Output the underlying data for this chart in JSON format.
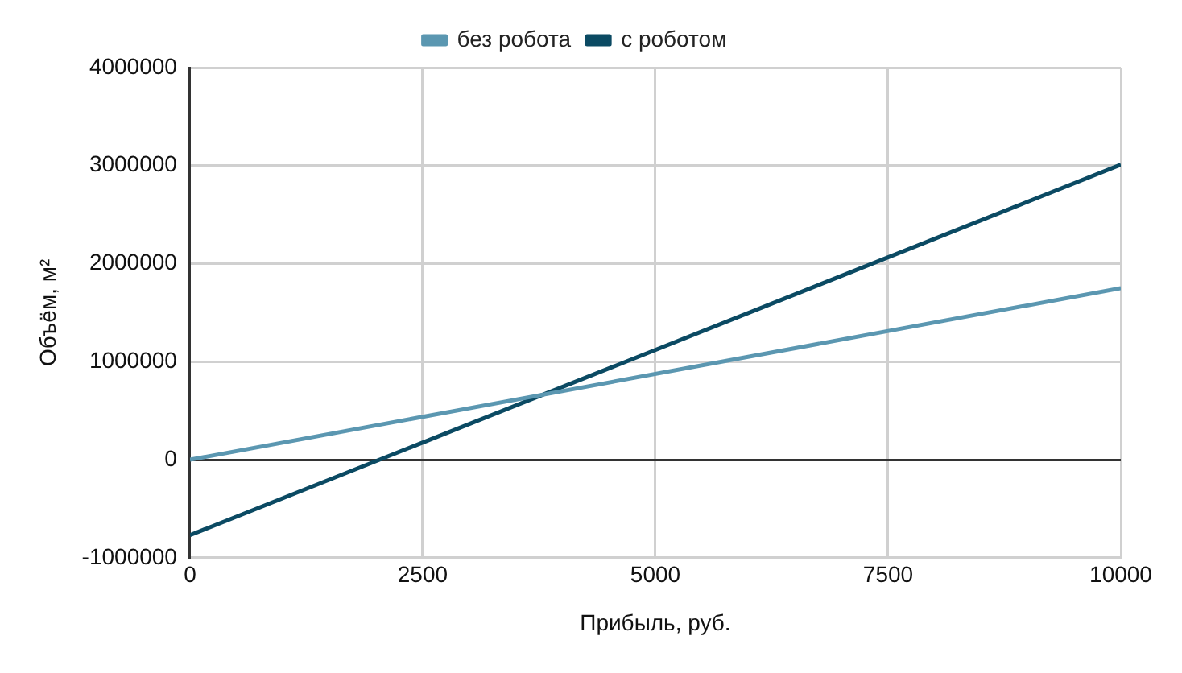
{
  "chart_data": {
    "type": "line",
    "xlabel": "Прибыль, руб.",
    "ylabel": "Объём, м²",
    "x": [
      0,
      10000
    ],
    "series": [
      {
        "name": "без робота",
        "color": "#5b97b1",
        "values": [
          0,
          1750000
        ]
      },
      {
        "name": "с роботом",
        "color": "#0b4a63",
        "values": [
          -770000,
          3010000
        ]
      }
    ],
    "xlim": [
      0,
      10000
    ],
    "xticks": [
      0,
      2500,
      5000,
      7500,
      10000
    ],
    "ylim": [
      -1000000,
      4000000
    ],
    "yticks": [
      -1000000,
      0,
      1000000,
      2000000,
      3000000,
      4000000
    ],
    "grid": true,
    "legend": "top",
    "marker": "none",
    "line_style": "solid"
  }
}
